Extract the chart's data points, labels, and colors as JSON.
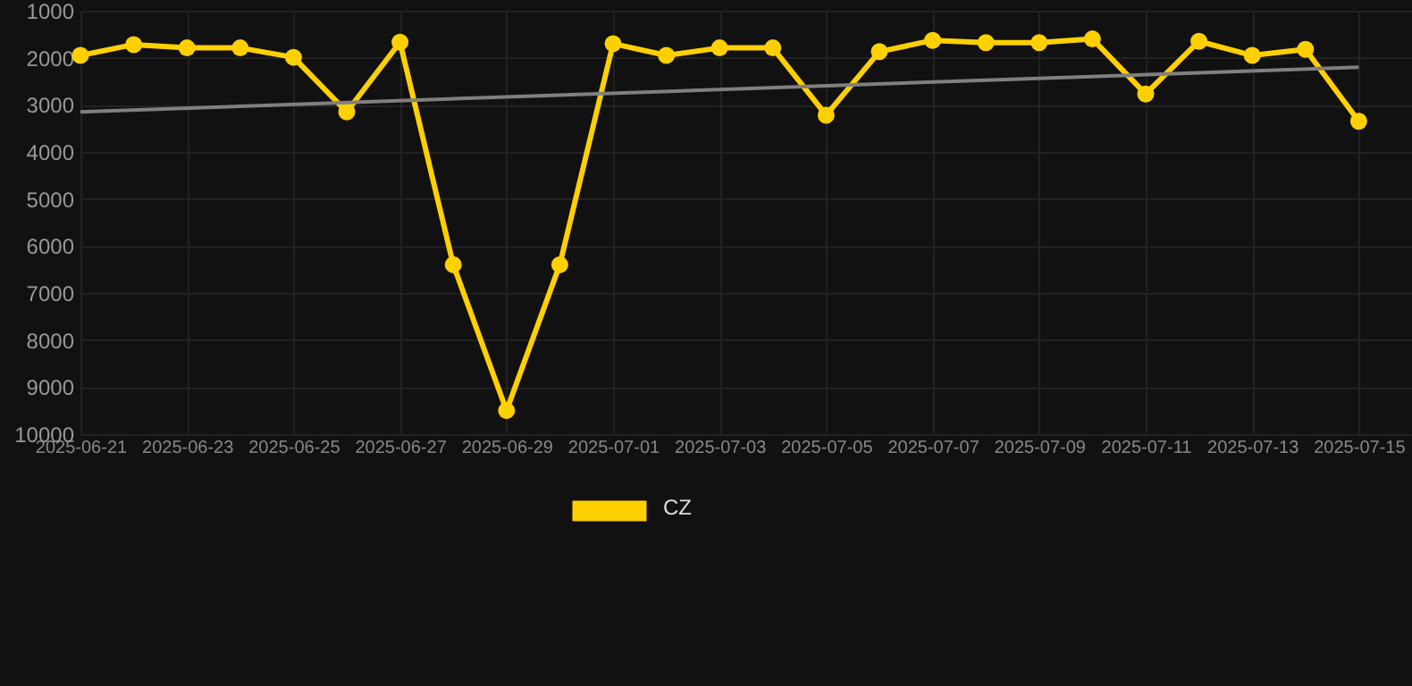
{
  "chart_data": {
    "type": "line",
    "x": [
      "2025-06-21",
      "2025-06-22",
      "2025-06-23",
      "2025-06-24",
      "2025-06-25",
      "2025-06-26",
      "2025-06-27",
      "2025-06-28",
      "2025-06-29",
      "2025-06-30",
      "2025-07-01",
      "2025-07-02",
      "2025-07-03",
      "2025-07-04",
      "2025-07-05",
      "2025-07-06",
      "2025-07-07",
      "2025-07-08",
      "2025-07-09",
      "2025-07-10",
      "2025-07-11",
      "2025-07-12",
      "2025-07-13",
      "2025-07-14",
      "2025-07-15"
    ],
    "series": [
      {
        "name": "CZ",
        "color": "#ffd000",
        "marker": "circle",
        "values": [
          1950,
          1720,
          1790,
          1790,
          1990,
          3150,
          1670,
          6400,
          9500,
          6400,
          1700,
          1950,
          1790,
          1790,
          3220,
          1870,
          1630,
          1680,
          1680,
          1600,
          2770,
          1650,
          1950,
          1820,
          3350
        ]
      },
      {
        "type": "line",
        "color": "#808080",
        "marker": "none",
        "x": [
          "2025-06-21",
          "2025-07-15"
        ],
        "values": [
          3150,
          2200
        ]
      }
    ],
    "xlim": [
      "2025-06-21",
      "2025-07-16"
    ],
    "xticks": [
      "2025-06-21",
      "2025-06-23",
      "2025-06-25",
      "2025-06-27",
      "2025-06-29",
      "2025-07-01",
      "2025-07-03",
      "2025-07-05",
      "2025-07-07",
      "2025-07-09",
      "2025-07-11",
      "2025-07-13",
      "2025-07-15"
    ],
    "ylim": [
      10000,
      1000
    ],
    "yticks": [
      1000,
      2000,
      3000,
      4000,
      5000,
      6000,
      7000,
      8000,
      9000,
      10000
    ],
    "grid": true,
    "legend": "bottom",
    "line_style": "solid"
  }
}
